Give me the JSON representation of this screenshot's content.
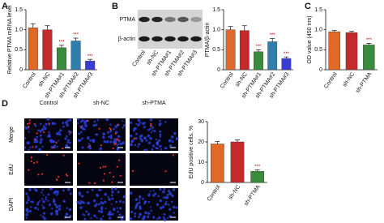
{
  "panels": [
    "A",
    "B",
    "C",
    "D"
  ],
  "blot": {
    "bands": [
      "PTMA",
      "β-actin"
    ],
    "lanes": [
      "Control",
      "sh-NC",
      "sh-PTMA#1",
      "sh-PTMA#2",
      "sh-PTMA#3"
    ]
  },
  "microscopy": {
    "columns": [
      "Control",
      "sh-NC",
      "sh-PTMA"
    ],
    "rows": [
      "Merge",
      "EdU",
      "DAPI"
    ]
  },
  "chart_data": [
    {
      "type": "bar",
      "y_label": "Relative PTMA mRNA level",
      "categories": [
        "Control",
        "sh-NC",
        "sh-PTMA#1",
        "sh-PTMA#2",
        "sh-PTMA#3"
      ],
      "values": [
        1.05,
        1.0,
        0.55,
        0.72,
        0.22
      ],
      "errors": [
        0.1,
        0.1,
        0.06,
        0.07,
        0.04
      ],
      "colors": [
        "#e0692a",
        "#c42a2c",
        "#3a8c3c",
        "#2f7fae",
        "#3b3bd6"
      ],
      "significance": [
        null,
        null,
        "***",
        "***",
        "***"
      ],
      "ylim": [
        0,
        1.5
      ],
      "yticks": [
        0,
        {
          "value": 0.5,
          "label": "0.5"
        },
        {
          "value": 1,
          "label": "1.0"
        },
        1.5
      ]
    },
    {
      "type": "bar",
      "y_label": "PTMA/β-actin",
      "categories": [
        "Control",
        "sh-NC",
        "sh-PTMA#1",
        "sh-PTMA#2",
        "sh-PTMA#3"
      ],
      "values": [
        1.0,
        0.98,
        0.45,
        0.7,
        0.28
      ],
      "errors": [
        0.08,
        0.12,
        0.05,
        0.08,
        0.04
      ],
      "colors": [
        "#e0692a",
        "#c42a2c",
        "#3a8c3c",
        "#2f7fae",
        "#3b3bd6"
      ],
      "significance": [
        null,
        null,
        "***",
        "***",
        "***"
      ],
      "ylim": [
        0,
        1.5
      ],
      "yticks": [
        0,
        {
          "value": 0.5,
          "label": "0.5"
        },
        {
          "value": 1,
          "label": "1.0"
        },
        1.5
      ]
    },
    {
      "type": "bar",
      "y_label": "OD value (450 nm)",
      "categories": [
        "Control",
        "sh-NC",
        "sh-PTMA"
      ],
      "values": [
        0.95,
        0.93,
        0.62
      ],
      "errors": [
        0.03,
        0.03,
        0.04
      ],
      "colors": [
        "#e0692a",
        "#c42a2c",
        "#3a8c3c"
      ],
      "significance": [
        null,
        null,
        "***"
      ],
      "ylim": [
        0,
        1.5
      ],
      "yticks": [
        0,
        {
          "value": 0.5,
          "label": "0.5"
        },
        {
          "value": 1,
          "label": "1.0"
        },
        1.5
      ]
    },
    {
      "type": "bar",
      "y_label": "EdU positive cells, %",
      "categories": [
        "Control",
        "sh-NC",
        "sh-PTMA"
      ],
      "values": [
        19,
        20,
        5.5
      ],
      "errors": [
        1.2,
        1.0,
        0.7
      ],
      "colors": [
        "#e0692a",
        "#c42a2c",
        "#3a8c3c"
      ],
      "significance": [
        null,
        null,
        "***"
      ],
      "ylim": [
        0,
        30
      ],
      "yticks": [
        0,
        10,
        20,
        30
      ]
    }
  ]
}
